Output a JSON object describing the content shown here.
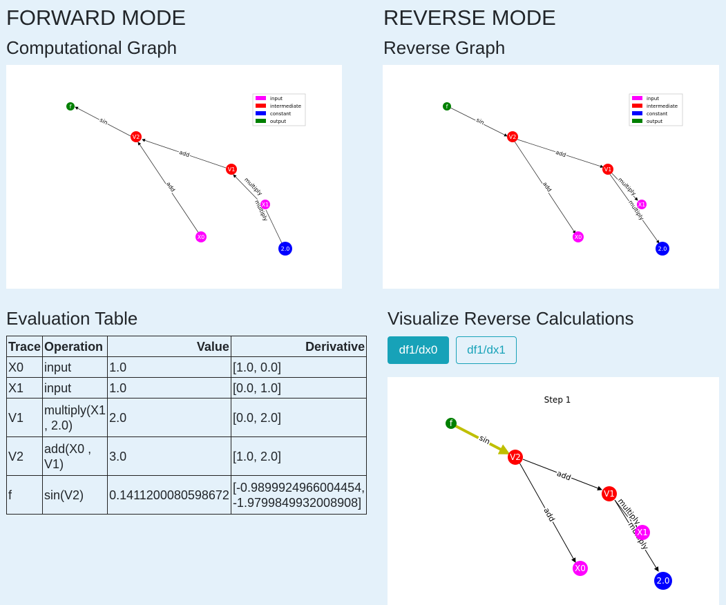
{
  "forward": {
    "title": "FORWARD MODE",
    "graph_title": "Computational Graph",
    "table_title": "Evaluation Table"
  },
  "reverse": {
    "title": "REVERSE MODE",
    "graph_title": "Reverse Graph",
    "calc_title": "Visualize Reverse Calculations",
    "step_label": "Step 1"
  },
  "legend": [
    "input",
    "intermediate",
    "constant",
    "output"
  ],
  "colors": {
    "input": "#ff00ff",
    "intermediate": "#ff0000",
    "constant": "#0000ff",
    "output": "#008000",
    "highlight": "#bfbf00",
    "accent": "#17a2b8"
  },
  "nodes": {
    "f": "f",
    "v2": "V2",
    "v1": "V1",
    "x1": "X1",
    "x0": "X0",
    "c": "2.0"
  },
  "edges": {
    "sin": "sin",
    "add1": "add",
    "add2": "add",
    "mul1": "multiply",
    "mul2": "multiply"
  },
  "buttons": {
    "dfdx0": "df1/dx0",
    "dfdx1": "df1/dx1"
  },
  "table": {
    "headers": [
      "Trace",
      "Operation",
      "Value",
      "Derivative"
    ],
    "rows": [
      {
        "trace": "X0",
        "op": "input",
        "value": "1.0",
        "deriv": "[1.0, 0.0]"
      },
      {
        "trace": "X1",
        "op": "input",
        "value": "1.0",
        "deriv": "[0.0, 1.0]"
      },
      {
        "trace": "V1",
        "op": "multiply(X1 , 2.0)",
        "value": "2.0",
        "deriv": "[0.0, 2.0]"
      },
      {
        "trace": "V2",
        "op": "add(X0 , V1)",
        "value": "3.0",
        "deriv": "[1.0, 2.0]"
      },
      {
        "trace": "f",
        "op": "sin(V2)",
        "value": "0.1411200080598672",
        "deriv": "[-0.9899924966004454, -1.9799849932008908]"
      }
    ]
  }
}
